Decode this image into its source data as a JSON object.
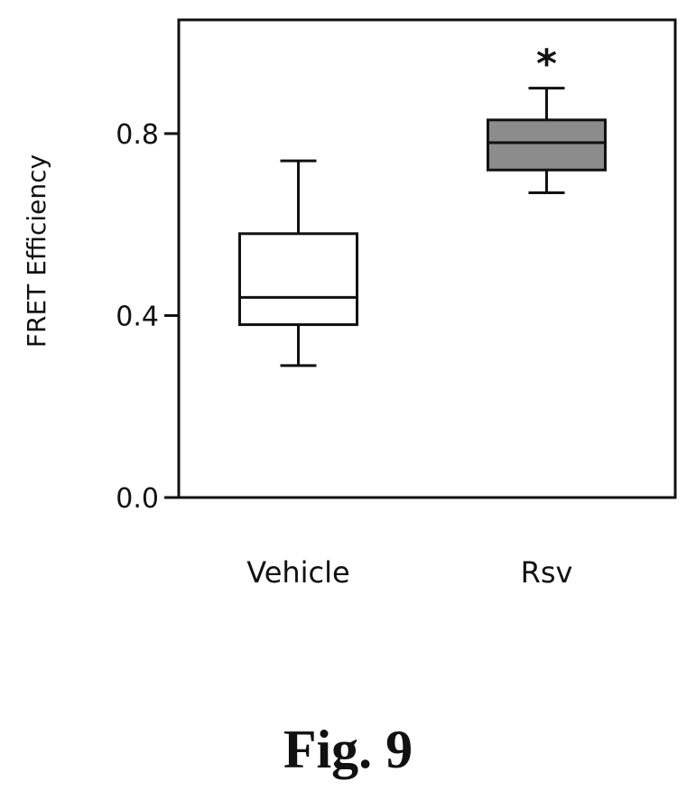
{
  "chart_data": {
    "type": "box",
    "ylabel": "FRET Efficiency",
    "ylim": [
      0.0,
      1.05
    ],
    "yticks": [
      0.0,
      0.4,
      0.8
    ],
    "ytick_labels": [
      "0.0",
      "0.4",
      "0.8"
    ],
    "categories": [
      "Vehicle",
      "Rsv"
    ],
    "boxes": [
      {
        "category": "Vehicle",
        "min": 0.29,
        "q1": 0.38,
        "median": 0.44,
        "q3": 0.58,
        "max": 0.74,
        "fill": "#ffffff",
        "annotation": ""
      },
      {
        "category": "Rsv",
        "min": 0.67,
        "q1": 0.72,
        "median": 0.78,
        "q3": 0.83,
        "max": 0.9,
        "fill": "#8c8c8c",
        "annotation": "*"
      }
    ],
    "grid": false
  },
  "caption": "Fig. 9"
}
